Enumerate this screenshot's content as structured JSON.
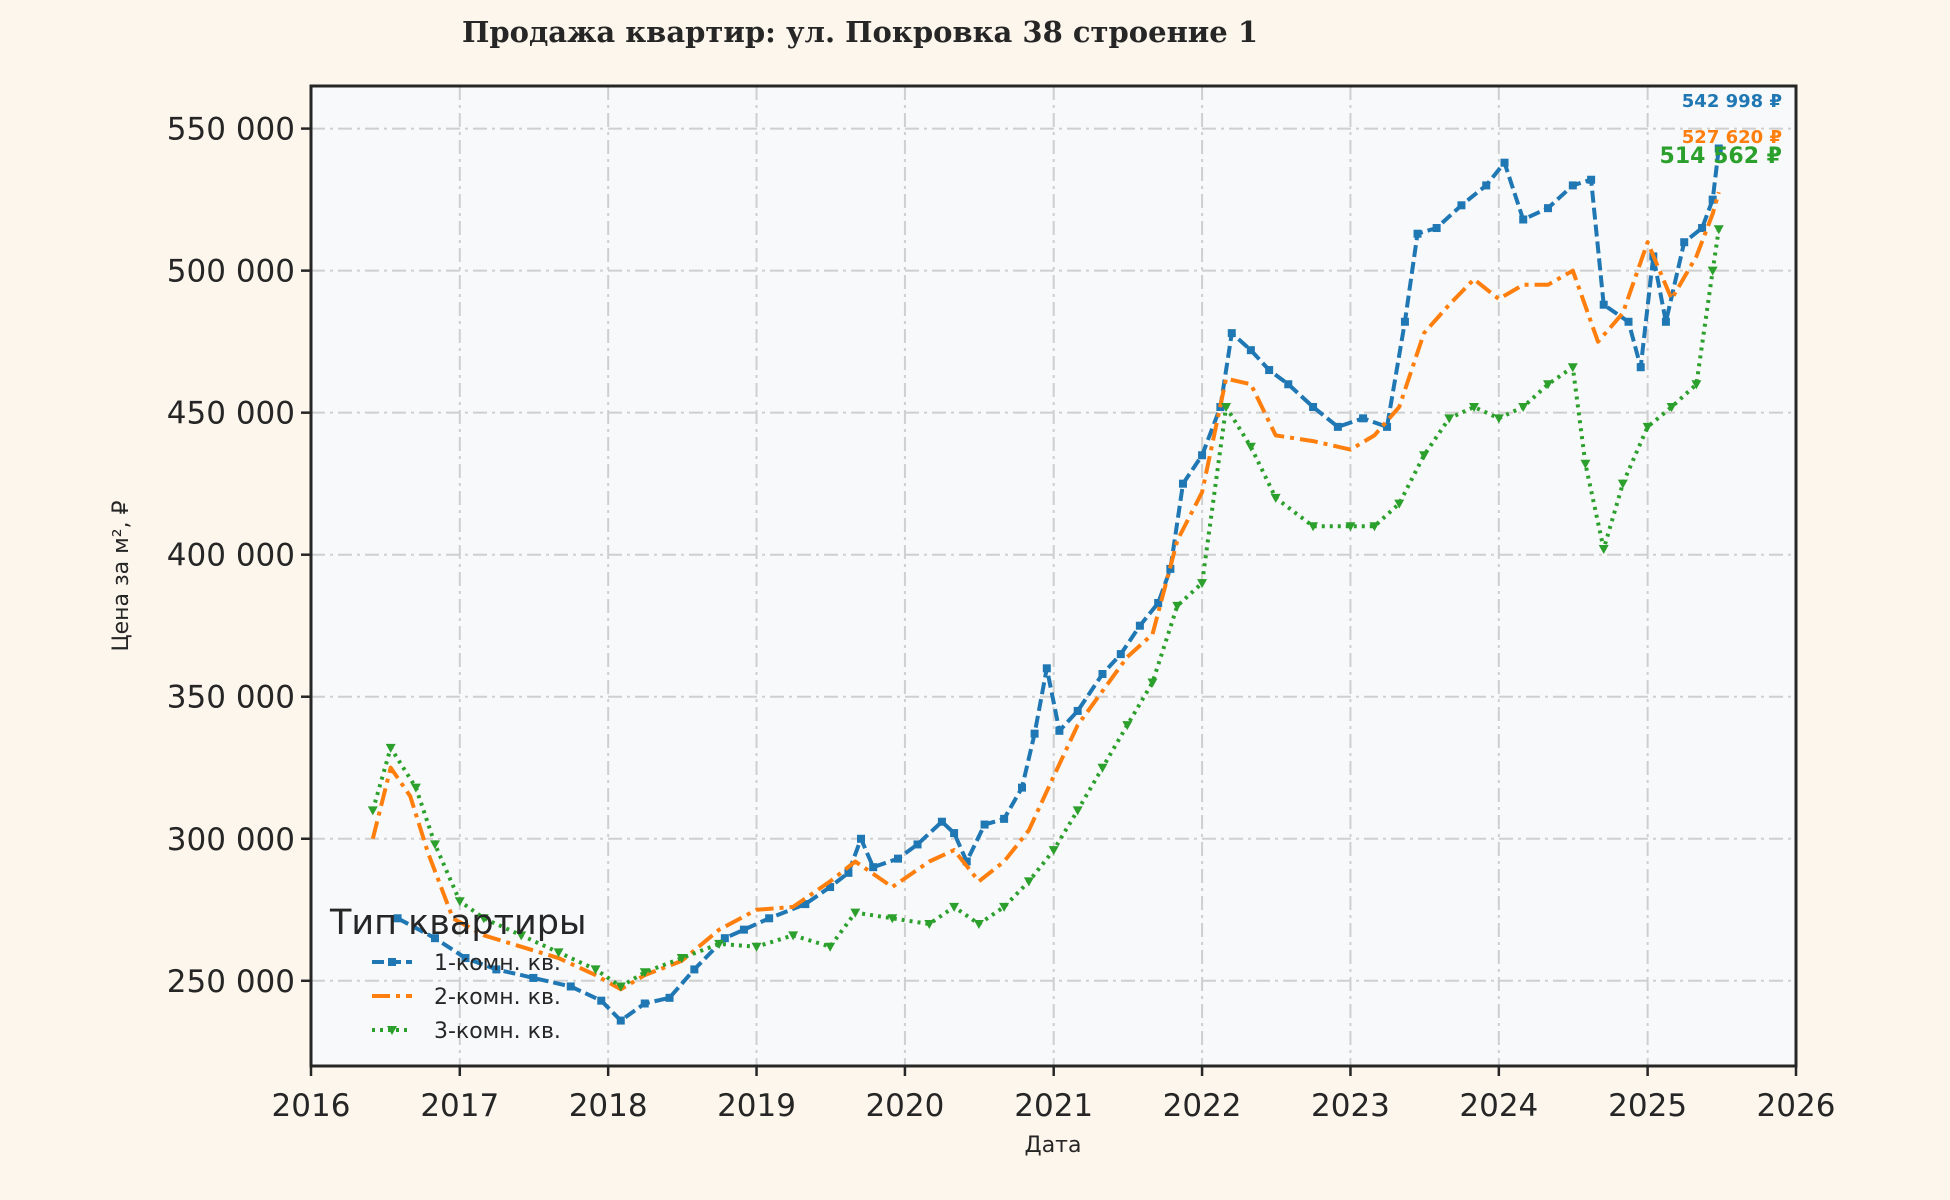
{
  "chart_data": {
    "type": "line",
    "title": "Продажа квартир: ул. Покровка 38 строение 1",
    "xlabel": "Дата",
    "ylabel": "Цена за м², ₽",
    "xlim": [
      "2016-01-01",
      "2026-01-01"
    ],
    "ylim": [
      220000,
      565000
    ],
    "grid": true,
    "x_ticks": [
      "2016",
      "2017",
      "2018",
      "2019",
      "2020",
      "2021",
      "2022",
      "2023",
      "2024",
      "2025",
      "2026"
    ],
    "y_ticks": [
      {
        "value": 250000,
        "label": "250 000"
      },
      {
        "value": 300000,
        "label": "300 000"
      },
      {
        "value": 350000,
        "label": "350 000"
      },
      {
        "value": 400000,
        "label": "400 000"
      },
      {
        "value": 450000,
        "label": "450 000"
      },
      {
        "value": 500000,
        "label": "500 000"
      },
      {
        "value": 550000,
        "label": "550 000"
      }
    ],
    "legend": {
      "title": "Тип квартиры",
      "position": "lower-left"
    },
    "series": [
      {
        "name": "1-комн. кв.",
        "color": "#1f77b4",
        "dash": "12 5",
        "marker": "square",
        "end_label": "542 998 ₽",
        "points": [
          [
            "2016-08-01",
            272000
          ],
          [
            "2016-11-01",
            265000
          ],
          [
            "2017-01-15",
            258000
          ],
          [
            "2017-04-01",
            254000
          ],
          [
            "2017-07-01",
            251000
          ],
          [
            "2017-10-01",
            248000
          ],
          [
            "2017-12-15",
            243000
          ],
          [
            "2018-02-01",
            236000
          ],
          [
            "2018-04-01",
            242000
          ],
          [
            "2018-06-01",
            244000
          ],
          [
            "2018-08-01",
            254000
          ],
          [
            "2018-10-15",
            265000
          ],
          [
            "2018-12-01",
            268000
          ],
          [
            "2019-02-01",
            272000
          ],
          [
            "2019-05-01",
            277000
          ],
          [
            "2019-07-01",
            283000
          ],
          [
            "2019-08-15",
            288000
          ],
          [
            "2019-09-15",
            300000
          ],
          [
            "2019-10-15",
            290000
          ],
          [
            "2019-12-15",
            293000
          ],
          [
            "2020-02-01",
            298000
          ],
          [
            "2020-04-01",
            306000
          ],
          [
            "2020-05-01",
            302000
          ],
          [
            "2020-06-01",
            292000
          ],
          [
            "2020-07-15",
            305000
          ],
          [
            "2020-09-01",
            307000
          ],
          [
            "2020-10-15",
            318000
          ],
          [
            "2020-11-15",
            337000
          ],
          [
            "2020-12-15",
            360000
          ],
          [
            "2021-01-15",
            338000
          ],
          [
            "2021-03-01",
            345000
          ],
          [
            "2021-05-01",
            358000
          ],
          [
            "2021-06-15",
            365000
          ],
          [
            "2021-08-01",
            375000
          ],
          [
            "2021-09-15",
            383000
          ],
          [
            "2021-10-15",
            395000
          ],
          [
            "2021-11-15",
            425000
          ],
          [
            "2022-01-01",
            435000
          ],
          [
            "2022-02-15",
            452000
          ],
          [
            "2022-03-15",
            478000
          ],
          [
            "2022-05-01",
            472000
          ],
          [
            "2022-06-15",
            465000
          ],
          [
            "2022-08-01",
            460000
          ],
          [
            "2022-10-01",
            452000
          ],
          [
            "2022-12-01",
            445000
          ],
          [
            "2023-02-01",
            448000
          ],
          [
            "2023-04-01",
            445000
          ],
          [
            "2023-05-15",
            482000
          ],
          [
            "2023-06-15",
            513000
          ],
          [
            "2023-08-01",
            515000
          ],
          [
            "2023-10-01",
            523000
          ],
          [
            "2023-12-01",
            530000
          ],
          [
            "2024-01-15",
            538000
          ],
          [
            "2024-03-01",
            518000
          ],
          [
            "2024-05-01",
            522000
          ],
          [
            "2024-07-01",
            530000
          ],
          [
            "2024-08-15",
            532000
          ],
          [
            "2024-09-15",
            488000
          ],
          [
            "2024-11-15",
            482000
          ],
          [
            "2024-12-15",
            466000
          ],
          [
            "2025-01-15",
            505000
          ],
          [
            "2025-02-15",
            482000
          ],
          [
            "2025-04-01",
            510000
          ],
          [
            "2025-05-15",
            515000
          ],
          [
            "2025-06-10",
            525000
          ],
          [
            "2025-06-25",
            542998
          ]
        ]
      },
      {
        "name": "2-комн. кв.",
        "color": "#ff7f0e",
        "dash": "18 6 4 6",
        "marker": "none",
        "end_label": "527 620 ₽",
        "points": [
          [
            "2016-06-01",
            300000
          ],
          [
            "2016-07-15",
            325000
          ],
          [
            "2016-09-01",
            315000
          ],
          [
            "2016-10-15",
            295000
          ],
          [
            "2016-12-15",
            272000
          ],
          [
            "2017-03-01",
            266000
          ],
          [
            "2017-06-01",
            262000
          ],
          [
            "2017-09-01",
            258000
          ],
          [
            "2017-12-01",
            252000
          ],
          [
            "2018-02-01",
            247000
          ],
          [
            "2018-04-01",
            252000
          ],
          [
            "2018-07-01",
            257000
          ],
          [
            "2018-10-01",
            268000
          ],
          [
            "2019-01-01",
            275000
          ],
          [
            "2019-04-01",
            276000
          ],
          [
            "2019-07-01",
            285000
          ],
          [
            "2019-09-01",
            292000
          ],
          [
            "2019-12-01",
            283000
          ],
          [
            "2020-03-01",
            292000
          ],
          [
            "2020-05-01",
            296000
          ],
          [
            "2020-07-01",
            285000
          ],
          [
            "2020-09-01",
            292000
          ],
          [
            "2020-11-01",
            303000
          ],
          [
            "2021-01-01",
            322000
          ],
          [
            "2021-03-01",
            340000
          ],
          [
            "2021-05-01",
            352000
          ],
          [
            "2021-07-01",
            364000
          ],
          [
            "2021-09-01",
            372000
          ],
          [
            "2021-11-01",
            405000
          ],
          [
            "2022-01-01",
            422000
          ],
          [
            "2022-03-01",
            462000
          ],
          [
            "2022-05-01",
            460000
          ],
          [
            "2022-07-01",
            442000
          ],
          [
            "2022-10-01",
            440000
          ],
          [
            "2023-01-01",
            437000
          ],
          [
            "2023-03-01",
            442000
          ],
          [
            "2023-05-01",
            452000
          ],
          [
            "2023-07-01",
            478000
          ],
          [
            "2023-09-01",
            488000
          ],
          [
            "2023-11-01",
            497000
          ],
          [
            "2024-01-01",
            490000
          ],
          [
            "2024-03-01",
            495000
          ],
          [
            "2024-05-01",
            495000
          ],
          [
            "2024-07-01",
            500000
          ],
          [
            "2024-09-01",
            475000
          ],
          [
            "2024-11-01",
            485000
          ],
          [
            "2025-01-01",
            510000
          ],
          [
            "2025-03-01",
            490000
          ],
          [
            "2025-05-01",
            505000
          ],
          [
            "2025-06-10",
            520000
          ],
          [
            "2025-06-25",
            527620
          ]
        ]
      },
      {
        "name": "3-комн. кв.",
        "color": "#2ca02c",
        "dash": "3 5",
        "marker": "triangle-down",
        "end_label": "514 562 ₽",
        "points": [
          [
            "2016-06-01",
            310000
          ],
          [
            "2016-07-15",
            332000
          ],
          [
            "2016-09-15",
            318000
          ],
          [
            "2016-11-01",
            298000
          ],
          [
            "2017-01-01",
            278000
          ],
          [
            "2017-03-01",
            272000
          ],
          [
            "2017-06-01",
            266000
          ],
          [
            "2017-09-01",
            260000
          ],
          [
            "2017-12-01",
            254000
          ],
          [
            "2018-02-01",
            248000
          ],
          [
            "2018-04-01",
            253000
          ],
          [
            "2018-07-01",
            258000
          ],
          [
            "2018-10-01",
            263000
          ],
          [
            "2019-01-01",
            262000
          ],
          [
            "2019-04-01",
            266000
          ],
          [
            "2019-07-01",
            262000
          ],
          [
            "2019-09-01",
            274000
          ],
          [
            "2019-12-01",
            272000
          ],
          [
            "2020-03-01",
            270000
          ],
          [
            "2020-05-01",
            276000
          ],
          [
            "2020-07-01",
            270000
          ],
          [
            "2020-09-01",
            276000
          ],
          [
            "2020-11-01",
            285000
          ],
          [
            "2021-01-01",
            296000
          ],
          [
            "2021-03-01",
            310000
          ],
          [
            "2021-05-01",
            325000
          ],
          [
            "2021-07-01",
            340000
          ],
          [
            "2021-09-01",
            355000
          ],
          [
            "2021-11-01",
            382000
          ],
          [
            "2022-01-01",
            390000
          ],
          [
            "2022-03-01",
            452000
          ],
          [
            "2022-05-01",
            438000
          ],
          [
            "2022-07-01",
            420000
          ],
          [
            "2022-10-01",
            410000
          ],
          [
            "2023-01-01",
            410000
          ],
          [
            "2023-03-01",
            410000
          ],
          [
            "2023-05-01",
            418000
          ],
          [
            "2023-07-01",
            435000
          ],
          [
            "2023-09-01",
            448000
          ],
          [
            "2023-11-01",
            452000
          ],
          [
            "2024-01-01",
            448000
          ],
          [
            "2024-03-01",
            452000
          ],
          [
            "2024-05-01",
            460000
          ],
          [
            "2024-07-01",
            466000
          ],
          [
            "2024-08-01",
            432000
          ],
          [
            "2024-09-15",
            402000
          ],
          [
            "2024-11-01",
            425000
          ],
          [
            "2025-01-01",
            445000
          ],
          [
            "2025-03-01",
            452000
          ],
          [
            "2025-05-01",
            460000
          ],
          [
            "2025-06-10",
            500000
          ],
          [
            "2025-06-25",
            514562
          ]
        ]
      }
    ]
  }
}
